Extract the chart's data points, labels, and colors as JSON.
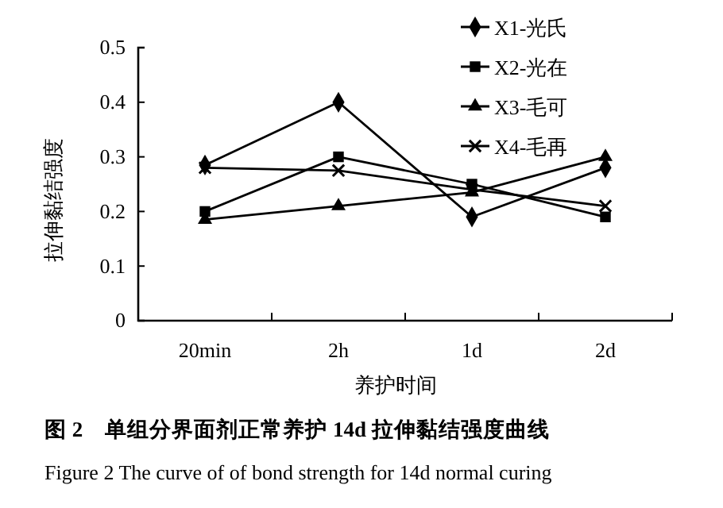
{
  "chart_data": {
    "type": "line",
    "title": "图 2　单组分界面剂正常养护 14d 拉伸黏结强度曲线",
    "subtitle": "Figure 2 The curve of of bond strength for 14d normal curing",
    "xlabel": "养护时间",
    "ylabel": "拉伸黏结强度",
    "categories": [
      "20min",
      "2h",
      "1d",
      "2d"
    ],
    "series": [
      {
        "name": "X1-光氏",
        "color": "#000000",
        "marker": "diamond",
        "values": [
          0.285,
          0.4,
          0.19,
          0.28
        ]
      },
      {
        "name": "X2-光在",
        "color": "#000000",
        "marker": "square",
        "values": [
          0.2,
          0.3,
          0.25,
          0.19
        ]
      },
      {
        "name": "X3-毛可",
        "color": "#000000",
        "marker": "triangle",
        "values": [
          0.185,
          0.21,
          0.235,
          0.3
        ]
      },
      {
        "name": "X4-毛再",
        "color": "#000000",
        "marker": "cross",
        "values": [
          0.28,
          0.275,
          0.24,
          0.21
        ]
      }
    ],
    "ylim": [
      0,
      0.5
    ],
    "yticks": [
      0,
      0.1,
      0.2,
      0.3,
      0.4,
      0.5
    ],
    "grid": false,
    "legend": "top right",
    "line_style": "solid"
  }
}
